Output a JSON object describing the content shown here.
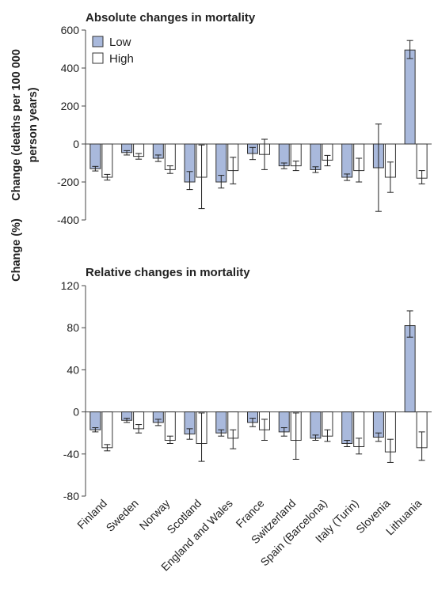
{
  "colors": {
    "low": "#a9b9dc",
    "high": "#ffffff",
    "outline": "#333333",
    "axis": "#444444"
  },
  "chart_data": [
    {
      "type": "bar",
      "title": "Absolute changes in mortality",
      "ylabel_lines": [
        "Change (deaths per 100 000",
        "person years)"
      ],
      "ylim": [
        -400,
        600
      ],
      "yticks": [
        -400,
        -200,
        0,
        200,
        400,
        600
      ],
      "ytick_labels": [
        "-400",
        "-200",
        "0",
        "200",
        "400",
        "600"
      ],
      "legend": "top-left",
      "categories": [
        "Finland",
        "Sweden",
        "Norway",
        "Scotland",
        "England and Wales",
        "France",
        "Switzerland",
        "Spain (Barcelona)",
        "Italy (Turin)",
        "Slovenia",
        "Lithuania"
      ],
      "series": [
        {
          "name": "Low",
          "values": [
            -130,
            -45,
            -75,
            -200,
            -200,
            -50,
            -115,
            -135,
            -175,
            -125,
            495
          ],
          "err_low": [
            -142,
            -58,
            -92,
            -240,
            -232,
            -82,
            -130,
            -150,
            -192,
            -355,
            450
          ],
          "err_high": [
            -118,
            -35,
            -58,
            -145,
            -165,
            -18,
            -100,
            -120,
            -158,
            105,
            545
          ]
        },
        {
          "name": "High",
          "values": [
            -175,
            -65,
            -135,
            -175,
            -140,
            -55,
            -115,
            -85,
            -140,
            -175,
            -180
          ],
          "err_low": [
            -190,
            -80,
            -155,
            -340,
            -210,
            -135,
            -140,
            -115,
            -200,
            -255,
            -210
          ],
          "err_high": [
            -160,
            -50,
            -115,
            -5,
            -70,
            25,
            -90,
            -60,
            -75,
            -95,
            -140
          ]
        }
      ]
    },
    {
      "type": "bar",
      "title": "Relative changes in mortality",
      "ylabel_lines": [
        "Change (%)"
      ],
      "ylim": [
        -80,
        120
      ],
      "yticks": [
        -80,
        -40,
        0,
        40,
        80,
        120
      ],
      "ytick_labels": [
        "-80",
        "-40",
        "0",
        "40",
        "80",
        "120"
      ],
      "categories": [
        "Finland",
        "Sweden",
        "Norway",
        "Scotland",
        "England and Wales",
        "France",
        "Switzerland",
        "Spain (Barcelona)",
        "Italy (Turin)",
        "Slovenia",
        "Lithuania"
      ],
      "series": [
        {
          "name": "Low",
          "values": [
            -17,
            -8,
            -10,
            -21,
            -20,
            -10,
            -19,
            -25,
            -30,
            -24,
            82
          ],
          "err_low": [
            -19,
            -10,
            -13,
            -26,
            -23,
            -14,
            -23,
            -27,
            -33,
            -28,
            71
          ],
          "err_high": [
            -15,
            -6,
            -7,
            -16,
            -17,
            -6,
            -15,
            -22,
            -27,
            -20,
            96
          ]
        },
        {
          "name": "High",
          "values": [
            -34,
            -16,
            -27,
            -30,
            -25,
            -17,
            -27,
            -23,
            -33,
            -38,
            -34
          ],
          "err_low": [
            -37,
            -20,
            -30,
            -47,
            -35,
            -27,
            -45,
            -28,
            -40,
            -48,
            -46
          ],
          "err_high": [
            -31,
            -12,
            -23,
            -1,
            -17,
            -7,
            -1,
            -17,
            -25,
            -26,
            -19
          ]
        }
      ]
    }
  ]
}
